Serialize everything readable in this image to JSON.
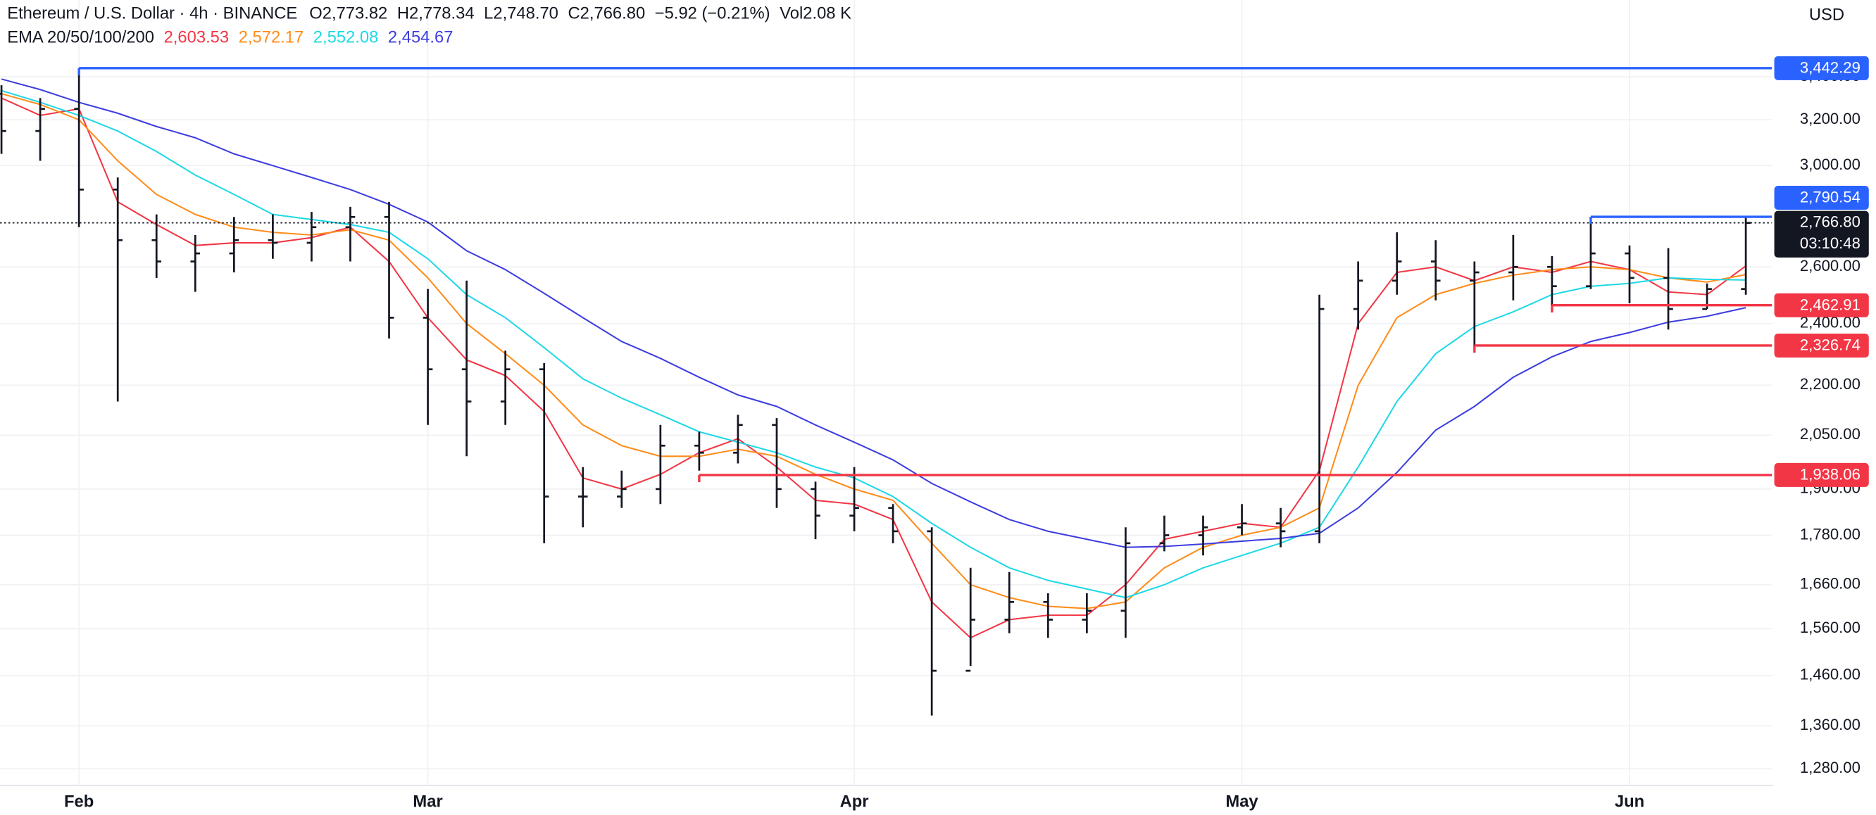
{
  "chart_data": {
    "type": "ohlc",
    "header": {
      "title": "Ethereum / U.S. Dollar · 4h · BINANCE",
      "ohlc": [
        {
          "key": "O",
          "value": "2,773.82"
        },
        {
          "key": "H",
          "value": "2,778.34"
        },
        {
          "key": "L",
          "value": "2,748.70"
        },
        {
          "key": "C",
          "value": "2,766.80"
        }
      ],
      "change": "−5.92 (−0.21%)",
      "volume_key": "Vol",
      "volume": "2.08 K",
      "legend_title": "EMA 20/50/100/200"
    },
    "currency": "USD",
    "categories": [
      null,
      null,
      "Feb",
      null,
      null,
      null,
      null,
      null,
      null,
      null,
      null,
      "Mar",
      null,
      null,
      null,
      null,
      null,
      null,
      null,
      null,
      null,
      null,
      "Apr",
      null,
      null,
      null,
      null,
      null,
      null,
      null,
      null,
      null,
      "May",
      null,
      null,
      null,
      null,
      null,
      null,
      null,
      null,
      null,
      "Jun",
      null,
      null,
      null
    ],
    "bar_color": "#131722",
    "open": [
      3320,
      3150,
      3250,
      2900,
      2700,
      2620,
      2650,
      2700,
      2690,
      2750,
      2790,
      2420,
      2250,
      2150,
      2250,
      1880,
      1880,
      1900,
      2020,
      2000,
      2080,
      1900,
      1830,
      1850,
      1790,
      1470,
      1580,
      1620,
      1580,
      1600,
      1760,
      1780,
      1800,
      1810,
      1790,
      2450,
      2550,
      2620,
      2550,
      2580,
      2600,
      2530,
      2650,
      2560,
      2450,
      2520
    ],
    "high": [
      3360,
      3300,
      3442.29,
      2950,
      2800,
      2720,
      2790,
      2800,
      2810,
      2830,
      2850,
      2520,
      2550,
      2310,
      2270,
      1960,
      1950,
      2080,
      2060,
      2110,
      2100,
      1920,
      1960,
      1860,
      1800,
      1700,
      1690,
      1640,
      1640,
      1800,
      1830,
      1830,
      1860,
      1850,
      2500,
      2620,
      2730,
      2700,
      2620,
      2720,
      2640,
      2790.54,
      2680,
      2670,
      2540,
      2790
    ],
    "low": [
      3050,
      3020,
      2750,
      2150,
      2560,
      2510,
      2580,
      2630,
      2620,
      2620,
      2350,
      2080,
      1990,
      2080,
      1760,
      1800,
      1850,
      1860,
      1950,
      1970,
      1850,
      1770,
      1790,
      1760,
      1380,
      1480,
      1550,
      1540,
      1550,
      1540,
      1740,
      1730,
      1780,
      1750,
      1760,
      2380,
      2500,
      2480,
      2326.74,
      2480,
      2462.91,
      2520,
      2470,
      2380,
      2450,
      2500
    ],
    "close": [
      3150,
      3250,
      2900,
      2700,
      2620,
      2650,
      2700,
      2690,
      2750,
      2790,
      2420,
      2250,
      2150,
      2250,
      1880,
      1880,
      1900,
      2020,
      2000,
      2080,
      1900,
      1830,
      1850,
      1790,
      1470,
      1580,
      1620,
      1580,
      1600,
      1760,
      1780,
      1800,
      1810,
      1790,
      2450,
      2550,
      2620,
      2550,
      2580,
      2600,
      2530,
      2650,
      2560,
      2450,
      2520,
      2766.8
    ],
    "series": [
      {
        "color": "#f23645",
        "label": "2,603.53",
        "values": [
          3300,
          3220,
          3250,
          2850,
          2760,
          2680,
          2690,
          2690,
          2710,
          2750,
          2620,
          2420,
          2280,
          2230,
          2120,
          1930,
          1900,
          1940,
          2000,
          2040,
          1960,
          1870,
          1860,
          1820,
          1620,
          1540,
          1580,
          1590,
          1590,
          1660,
          1770,
          1790,
          1810,
          1800,
          1950,
          2400,
          2580,
          2600,
          2550,
          2600,
          2580,
          2620,
          2590,
          2510,
          2500,
          2603.53
        ]
      },
      {
        "color": "#ff8c1a",
        "label": "2,572.17",
        "values": [
          3320,
          3270,
          3200,
          3020,
          2880,
          2800,
          2750,
          2730,
          2720,
          2740,
          2700,
          2560,
          2400,
          2300,
          2200,
          2080,
          2020,
          1990,
          1990,
          2010,
          1990,
          1940,
          1900,
          1870,
          1760,
          1660,
          1630,
          1610,
          1605,
          1620,
          1700,
          1750,
          1780,
          1800,
          1850,
          2200,
          2420,
          2500,
          2540,
          2570,
          2590,
          2600,
          2590,
          2560,
          2545,
          2572.17
        ]
      },
      {
        "color": "#1fd8e6",
        "label": "2,552.08",
        "values": [
          3335,
          3280,
          3220,
          3150,
          3060,
          2960,
          2880,
          2800,
          2780,
          2760,
          2730,
          2630,
          2500,
          2420,
          2320,
          2220,
          2160,
          2110,
          2060,
          2030,
          2000,
          1960,
          1930,
          1880,
          1810,
          1750,
          1700,
          1670,
          1650,
          1630,
          1660,
          1700,
          1730,
          1760,
          1800,
          1960,
          2150,
          2300,
          2390,
          2440,
          2500,
          2530,
          2540,
          2560,
          2555,
          2552.08
        ]
      },
      {
        "color": "#3d3de0",
        "label": "2,454.67",
        "values": [
          3390,
          3340,
          3280,
          3230,
          3170,
          3120,
          3050,
          3000,
          2950,
          2900,
          2840,
          2770,
          2660,
          2590,
          2505,
          2420,
          2340,
          2285,
          2225,
          2170,
          2135,
          2080,
          2030,
          1980,
          1915,
          1866,
          1820,
          1790,
          1770,
          1750,
          1752,
          1758,
          1765,
          1772,
          1785,
          1850,
          1945,
          2065,
          2135,
          2225,
          2290,
          2340,
          2370,
          2405,
          2425,
          2454.67
        ]
      }
    ],
    "levels": [
      {
        "value": 3442.29,
        "label": "3,442.29",
        "color": "#2962ff",
        "from": 2
      },
      {
        "value": 2790.54,
        "label": "2,790.54",
        "color": "#2962ff",
        "from": 41
      },
      {
        "value": 2462.91,
        "label": "2,462.91",
        "color": "#f23645",
        "from": 40
      },
      {
        "value": 2326.74,
        "label": "2,326.74",
        "color": "#f23645",
        "from": 38
      },
      {
        "value": 1938.06,
        "label": "1,938.06",
        "color": "#f23645",
        "from": 18
      }
    ],
    "last_price": {
      "value": 2766.8,
      "label": "2,766.80",
      "countdown": "03:10:48"
    },
    "ylim": [
      1250,
      3790
    ],
    "log_scale": true,
    "grid": true,
    "yticks": [
      {
        "value": 1280,
        "label": "1,280.00"
      },
      {
        "value": 1360,
        "label": "1,360.00"
      },
      {
        "value": 1460,
        "label": "1,460.00"
      },
      {
        "value": 1560,
        "label": "1,560.00"
      },
      {
        "value": 1660,
        "label": "1,660.00"
      },
      {
        "value": 1780,
        "label": "1,780.00"
      },
      {
        "value": 1900,
        "label": "1,900.00"
      },
      {
        "value": 2050,
        "label": "2,050.00"
      },
      {
        "value": 2200,
        "label": "2,200.00"
      },
      {
        "value": 2400,
        "label": "2,400.00"
      },
      {
        "value": 2600,
        "label": "2,600.00"
      },
      {
        "value": 3000,
        "label": "3,000.00"
      },
      {
        "value": 3200,
        "label": "3,200.00"
      },
      {
        "value": 3400,
        "label": "3,400.00"
      }
    ]
  }
}
